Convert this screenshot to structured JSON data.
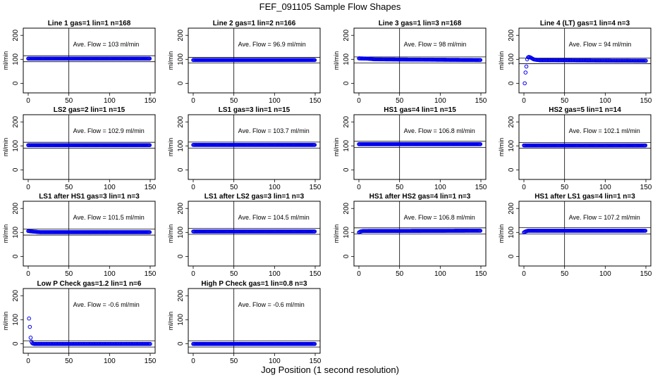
{
  "figure": {
    "title": "FEF_091105  Sample Flow Shapes",
    "xlabel": "Jog Position (1 second resolution)",
    "ylabel": "ml/min",
    "point_color": "#0000ee",
    "xticks": [
      "0",
      "50",
      "100",
      "150"
    ],
    "yticks": [
      "0",
      "100",
      "200"
    ]
  },
  "chart_data": [
    {
      "type": "scatter",
      "title": "Line 1 gas=1 lin=1 n=168",
      "annotation": "Ave. Flow =  103  ml/min",
      "ave_flow": 103,
      "xlim": [
        0,
        150
      ],
      "ylim": [
        -40,
        230
      ],
      "vline_x": 50,
      "hlines": [
        90,
        115
      ],
      "shape": "flat",
      "series": [
        {
          "name": "flow",
          "x": [
            0,
            150
          ],
          "y": [
            103,
            103
          ]
        }
      ]
    },
    {
      "type": "scatter",
      "title": "Line 2 gas=1 lin=2 n=166",
      "annotation": "Ave. Flow =  96.9  ml/min",
      "ave_flow": 96.9,
      "xlim": [
        0,
        150
      ],
      "ylim": [
        -40,
        230
      ],
      "vline_x": 50,
      "hlines": [
        85,
        108
      ],
      "shape": "flat",
      "series": [
        {
          "name": "flow",
          "x": [
            0,
            150
          ],
          "y": [
            97,
            97
          ]
        }
      ]
    },
    {
      "type": "scatter",
      "title": "Line 3 gas=1 lin=3 n=168",
      "annotation": "Ave. Flow =  98  ml/min",
      "ave_flow": 98,
      "xlim": [
        0,
        150
      ],
      "ylim": [
        -40,
        230
      ],
      "vline_x": 50,
      "hlines": [
        85,
        110
      ],
      "shape": "flat",
      "series": [
        {
          "name": "flow",
          "x": [
            0,
            10,
            20,
            150
          ],
          "y": [
            104,
            103,
            100,
            97
          ]
        }
      ]
    },
    {
      "type": "scatter",
      "title": "Line 4 (LT) gas=1 lin=4 n=3",
      "annotation": "Ave. Flow =  94  ml/min",
      "ave_flow": 94,
      "xlim": [
        0,
        150
      ],
      "ylim": [
        -40,
        230
      ],
      "vline_x": 50,
      "hlines": [
        82,
        105
      ],
      "shape": "startup",
      "series": [
        {
          "name": "flow",
          "x": [
            1,
            2,
            3,
            4,
            5,
            6,
            8,
            10,
            12,
            15,
            20,
            150
          ],
          "y": [
            0,
            45,
            70,
            100,
            108,
            110,
            108,
            104,
            100,
            98,
            96,
            94
          ]
        }
      ]
    },
    {
      "type": "scatter",
      "title": "LS2 gas=2 lin=1 n=15",
      "annotation": "Ave. Flow =  102.9  ml/min",
      "ave_flow": 102.9,
      "xlim": [
        0,
        150
      ],
      "ylim": [
        -40,
        230
      ],
      "vline_x": 50,
      "hlines": [
        90,
        115
      ],
      "shape": "flat",
      "series": [
        {
          "name": "flow",
          "x": [
            0,
            150
          ],
          "y": [
            103,
            103
          ]
        }
      ]
    },
    {
      "type": "scatter",
      "title": "LS1 gas=3 lin=1 n=15",
      "annotation": "Ave. Flow =  103.7  ml/min",
      "ave_flow": 103.7,
      "xlim": [
        0,
        150
      ],
      "ylim": [
        -40,
        230
      ],
      "vline_x": 50,
      "hlines": [
        91,
        116
      ],
      "shape": "flat",
      "series": [
        {
          "name": "flow",
          "x": [
            0,
            150
          ],
          "y": [
            104,
            104
          ]
        }
      ]
    },
    {
      "type": "scatter",
      "title": "HS1 gas=4 lin=1 n=15",
      "annotation": "Ave. Flow =  106.8  ml/min",
      "ave_flow": 106.8,
      "xlim": [
        0,
        150
      ],
      "ylim": [
        -40,
        230
      ],
      "vline_x": 50,
      "hlines": [
        94,
        119
      ],
      "shape": "flat",
      "series": [
        {
          "name": "flow",
          "x": [
            0,
            150
          ],
          "y": [
            107,
            107
          ]
        }
      ]
    },
    {
      "type": "scatter",
      "title": "HS2 gas=5 lin=1 n=14",
      "annotation": "Ave. Flow =  102.1  ml/min",
      "ave_flow": 102.1,
      "xlim": [
        0,
        150
      ],
      "ylim": [
        -40,
        230
      ],
      "vline_x": 50,
      "hlines": [
        90,
        114
      ],
      "shape": "flat",
      "series": [
        {
          "name": "flow",
          "x": [
            0,
            150
          ],
          "y": [
            102,
            102
          ]
        }
      ]
    },
    {
      "type": "scatter",
      "title": "LS1 after HS1 gas=3 lin=1 n=3",
      "annotation": "Ave. Flow =  101.5  ml/min",
      "ave_flow": 101.5,
      "xlim": [
        0,
        150
      ],
      "ylim": [
        -40,
        230
      ],
      "vline_x": 50,
      "hlines": [
        89,
        114
      ],
      "shape": "flat",
      "series": [
        {
          "name": "flow",
          "x": [
            0,
            5,
            15,
            150
          ],
          "y": [
            106,
            104,
            101,
            101
          ]
        }
      ]
    },
    {
      "type": "scatter",
      "title": "LS1 after LS2 gas=3 lin=1 n=3",
      "annotation": "Ave. Flow =  104.5  ml/min",
      "ave_flow": 104.5,
      "xlim": [
        0,
        150
      ],
      "ylim": [
        -40,
        230
      ],
      "vline_x": 50,
      "hlines": [
        92,
        117
      ],
      "shape": "flat",
      "series": [
        {
          "name": "flow",
          "x": [
            0,
            150
          ],
          "y": [
            104,
            104
          ]
        }
      ]
    },
    {
      "type": "scatter",
      "title": "HS1 after HS2 gas=4 lin=1 n=3",
      "annotation": "Ave. Flow =  106.8  ml/min",
      "ave_flow": 106.8,
      "xlim": [
        0,
        150
      ],
      "ylim": [
        -40,
        230
      ],
      "vline_x": 50,
      "hlines": [
        94,
        119
      ],
      "shape": "flat",
      "series": [
        {
          "name": "flow",
          "x": [
            0,
            2,
            5,
            150
          ],
          "y": [
            100,
            104,
            106,
            107
          ]
        }
      ]
    },
    {
      "type": "scatter",
      "title": "HS1 after LS1 gas=4 lin=1 n=3",
      "annotation": "Ave. Flow =  107.2  ml/min",
      "ave_flow": 107.2,
      "xlim": [
        0,
        150
      ],
      "ylim": [
        -40,
        230
      ],
      "vline_x": 50,
      "hlines": [
        94,
        120
      ],
      "shape": "flat",
      "series": [
        {
          "name": "flow",
          "x": [
            0,
            2,
            5,
            150
          ],
          "y": [
            100,
            104,
            107,
            107
          ]
        }
      ]
    },
    {
      "type": "scatter",
      "title": "Low P Check gas=1.2 lin=1 n=6",
      "annotation": "Ave. Flow =  -0.6  ml/min",
      "ave_flow": -0.6,
      "xlim": [
        0,
        150
      ],
      "ylim": [
        -40,
        230
      ],
      "vline_x": 50,
      "hlines": [
        -14,
        12
      ],
      "shape": "decay",
      "series": [
        {
          "name": "flow",
          "x": [
            1,
            2,
            3,
            4,
            5,
            6,
            8,
            10,
            150
          ],
          "y": [
            105,
            70,
            25,
            8,
            2,
            0,
            -1,
            -1,
            -1
          ]
        }
      ]
    },
    {
      "type": "scatter",
      "title": "High P Check gas=1 lin=0.8 n=3",
      "annotation": "Ave. Flow =  -0.6  ml/min",
      "ave_flow": -0.6,
      "xlim": [
        0,
        150
      ],
      "ylim": [
        -40,
        230
      ],
      "vline_x": 50,
      "hlines": [
        -14,
        12
      ],
      "shape": "flat",
      "series": [
        {
          "name": "flow",
          "x": [
            0,
            150
          ],
          "y": [
            -1,
            -1
          ]
        }
      ]
    }
  ]
}
